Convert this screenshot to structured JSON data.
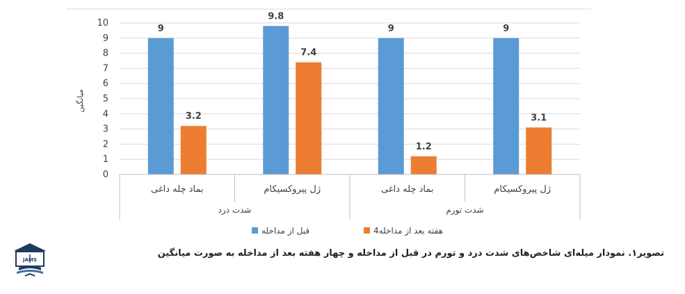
{
  "chart_data": {
    "type": "bar",
    "ylabel": "میانگین",
    "ylim": [
      0,
      10
    ],
    "yticks": [
      "0",
      "1",
      "2",
      "3",
      "4",
      "5",
      "6",
      "7",
      "8",
      "9",
      "10"
    ],
    "grid": true,
    "legend_position": "bottom",
    "groups": [
      {
        "label": "شدت درد",
        "categories": [
          "بماد چله داغی",
          "ژل پیروکسیکام"
        ]
      },
      {
        "label": "شدت تورم",
        "categories": [
          "بماد چله داغی",
          "ژل پیروکسیکام"
        ]
      }
    ],
    "categories": [
      "بماد چله داغی",
      "ژل پیروکسیکام",
      "بماد چله داغی",
      "ژل پیروکسیکام"
    ],
    "series": [
      {
        "name": "قبل از مداخله",
        "color": "#5b9bd5",
        "values": [
          9,
          9.8,
          9,
          9
        ],
        "value_labels": [
          "9",
          "9.8",
          "9",
          "9"
        ]
      },
      {
        "name": "4هفته بعد از مداخله",
        "color": "#ed7d31",
        "values": [
          3.2,
          7.4,
          1.2,
          3.1
        ],
        "value_labels": [
          "3.2",
          "7.4",
          "1.2",
          "3.1"
        ]
      }
    ]
  },
  "caption": "تصویر۱. نمودار میله‌ای شاخص‌های شدت درد و تورم در قبل از مداخله و چهار هفته بعد از مداخله به صورت میانگین",
  "logo": {
    "text": "JAMS",
    "icon": "book-pen-emblem-icon"
  }
}
